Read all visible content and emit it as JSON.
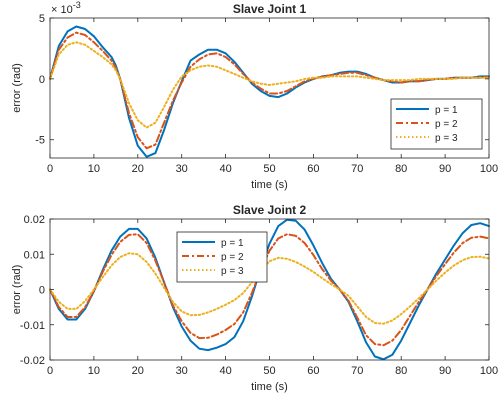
{
  "chart_data": [
    {
      "type": "line",
      "title": "Slave Joint 1",
      "xlabel": "time (s)",
      "ylabel": "error (rad)",
      "exponent_label": "× 10",
      "exponent_power": "-3",
      "xlim": [
        0,
        100
      ],
      "ylim": [
        -6.5,
        5
      ],
      "xticks": [
        0,
        10,
        20,
        30,
        40,
        50,
        60,
        70,
        80,
        90,
        100
      ],
      "yticks": [
        -5,
        0,
        5
      ],
      "grid": false,
      "legend_position": "lower-right",
      "x": [
        0,
        2,
        4,
        6,
        8,
        10,
        12,
        14,
        15,
        16,
        18,
        20,
        22,
        24,
        26,
        28,
        30,
        32,
        34,
        36,
        38,
        40,
        42,
        44,
        46,
        48,
        50,
        52,
        54,
        56,
        58,
        60,
        62,
        64,
        66,
        68,
        70,
        72,
        74,
        76,
        78,
        80,
        82,
        84,
        86,
        88,
        90,
        92,
        94,
        96,
        98,
        100
      ],
      "series": [
        {
          "name": "p = 1",
          "color": "#0072BD",
          "dash": "solid",
          "values": [
            0,
            2.7,
            3.9,
            4.3,
            4.1,
            3.5,
            2.6,
            1.8,
            1.1,
            0,
            -3.2,
            -5.5,
            -6.4,
            -6.1,
            -4.2,
            -2.0,
            -0.2,
            1.5,
            2.0,
            2.4,
            2.4,
            2.1,
            1.4,
            0.5,
            -0.4,
            -1.0,
            -1.4,
            -1.5,
            -1.2,
            -0.7,
            -0.3,
            0,
            0.2,
            0.3,
            0.5,
            0.6,
            0.6,
            0.4,
            0.1,
            -0.1,
            -0.3,
            -0.3,
            -0.2,
            -0.2,
            -0.1,
            0,
            0,
            0.1,
            0.1,
            0.1,
            0.2,
            0.2
          ]
        },
        {
          "name": "p = 2",
          "color": "#D95319",
          "dash": "dashdot",
          "values": [
            0,
            2.4,
            3.4,
            3.8,
            3.6,
            3.0,
            2.3,
            1.5,
            0.9,
            0,
            -2.8,
            -4.8,
            -5.7,
            -5.4,
            -3.6,
            -1.8,
            -0.3,
            1.0,
            1.6,
            2.0,
            2.1,
            1.8,
            1.2,
            0.4,
            -0.3,
            -0.8,
            -1.2,
            -1.2,
            -1.0,
            -0.6,
            -0.2,
            0,
            0.2,
            0.3,
            0.4,
            0.5,
            0.5,
            0.3,
            0.1,
            -0.1,
            -0.2,
            -0.3,
            -0.2,
            -0.2,
            -0.1,
            0,
            0,
            0.1,
            0.1,
            0.1,
            0.1,
            0.2
          ]
        },
        {
          "name": "p = 3",
          "color": "#EDB120",
          "dash": "dotted",
          "values": [
            0,
            2.0,
            2.8,
            3.0,
            2.8,
            2.3,
            1.8,
            1.2,
            0.7,
            0,
            -2.0,
            -3.4,
            -4.0,
            -3.6,
            -2.3,
            -0.9,
            0.2,
            0.7,
            1.0,
            1.1,
            1.0,
            0.7,
            0.4,
            0.1,
            -0.2,
            -0.4,
            -0.5,
            -0.4,
            -0.3,
            -0.2,
            0,
            0.1,
            0.1,
            0.2,
            0.2,
            0.2,
            0.2,
            0.1,
            0,
            -0.1,
            -0.1,
            -0.1,
            -0.1,
            0,
            0,
            0,
            0,
            0,
            0.1,
            0.1,
            0.1,
            0.1
          ]
        }
      ]
    },
    {
      "type": "line",
      "title": "Slave Joint 2",
      "xlabel": "time (s)",
      "ylabel": "error (rad)",
      "xlim": [
        0,
        100
      ],
      "ylim": [
        -0.02,
        0.02
      ],
      "xticks": [
        0,
        10,
        20,
        30,
        40,
        50,
        60,
        70,
        80,
        90,
        100
      ],
      "yticks": [
        -0.02,
        -0.01,
        0,
        0.01,
        0.02
      ],
      "ytick_labels": [
        "-0.02",
        "-0.01",
        "0",
        "0.01",
        "0.02"
      ],
      "grid": false,
      "legend_position": "upper-left-center",
      "x": [
        0,
        2,
        4,
        6,
        8,
        10,
        12,
        14,
        16,
        18,
        20,
        22,
        24,
        26,
        28,
        30,
        32,
        34,
        36,
        38,
        40,
        42,
        44,
        46,
        48,
        50,
        52,
        54,
        56,
        58,
        60,
        62,
        64,
        66,
        68,
        70,
        72,
        74,
        76,
        78,
        80,
        82,
        84,
        86,
        88,
        90,
        92,
        94,
        96,
        98,
        100
      ],
      "series": [
        {
          "name": "p = 1",
          "color": "#0072BD",
          "dash": "solid",
          "values": [
            0,
            -0.0055,
            -0.0085,
            -0.0085,
            -0.0055,
            -0.0005,
            0.0055,
            0.011,
            0.015,
            0.0172,
            0.0172,
            0.0145,
            0.009,
            0.002,
            -0.005,
            -0.0105,
            -0.0145,
            -0.0168,
            -0.0172,
            -0.0165,
            -0.0155,
            -0.0135,
            -0.009,
            -0.002,
            0.006,
            0.013,
            0.018,
            0.0198,
            0.0195,
            0.017,
            0.0125,
            0.0075,
            0.003,
            0,
            -0.0035,
            -0.009,
            -0.015,
            -0.019,
            -0.0198,
            -0.0185,
            -0.0145,
            -0.0095,
            -0.0045,
            0,
            0.0045,
            0.0085,
            0.0125,
            0.016,
            0.0183,
            0.0188,
            0.018
          ]
        },
        {
          "name": "p = 2",
          "color": "#D95319",
          "dash": "dashdot",
          "values": [
            0,
            -0.005,
            -0.0078,
            -0.0078,
            -0.005,
            -0.0005,
            0.005,
            0.0098,
            0.0135,
            0.0155,
            0.0157,
            0.0132,
            0.0082,
            0.002,
            -0.0045,
            -0.009,
            -0.0123,
            -0.0138,
            -0.0137,
            -0.0128,
            -0.0115,
            -0.0098,
            -0.0065,
            -0.001,
            0.0055,
            0.011,
            0.0145,
            0.0157,
            0.0152,
            0.0132,
            0.0098,
            0.0058,
            0.0025,
            0,
            -0.0032,
            -0.008,
            -0.013,
            -0.0155,
            -0.0158,
            -0.0145,
            -0.0115,
            -0.0075,
            -0.0035,
            0,
            0.0038,
            0.0072,
            0.0105,
            0.0132,
            0.0147,
            0.015,
            0.0145
          ]
        },
        {
          "name": "p = 3",
          "color": "#EDB120",
          "dash": "dotted",
          "values": [
            0,
            -0.0035,
            -0.0055,
            -0.0055,
            -0.0033,
            0,
            0.0035,
            0.0068,
            0.0092,
            0.0103,
            0.01,
            0.0078,
            0.0045,
            0.0005,
            -0.0035,
            -0.0062,
            -0.0073,
            -0.0072,
            -0.0065,
            -0.0055,
            -0.0043,
            -0.003,
            -0.001,
            0.002,
            0.0055,
            0.008,
            0.009,
            0.0087,
            0.0078,
            0.0065,
            0.005,
            0.0032,
            0.0015,
            0,
            -0.0018,
            -0.0048,
            -0.0078,
            -0.0095,
            -0.0097,
            -0.0088,
            -0.007,
            -0.0048,
            -0.0025,
            0,
            0.0025,
            0.0048,
            0.0068,
            0.0083,
            0.0092,
            0.0093,
            0.0088
          ]
        }
      ]
    }
  ]
}
